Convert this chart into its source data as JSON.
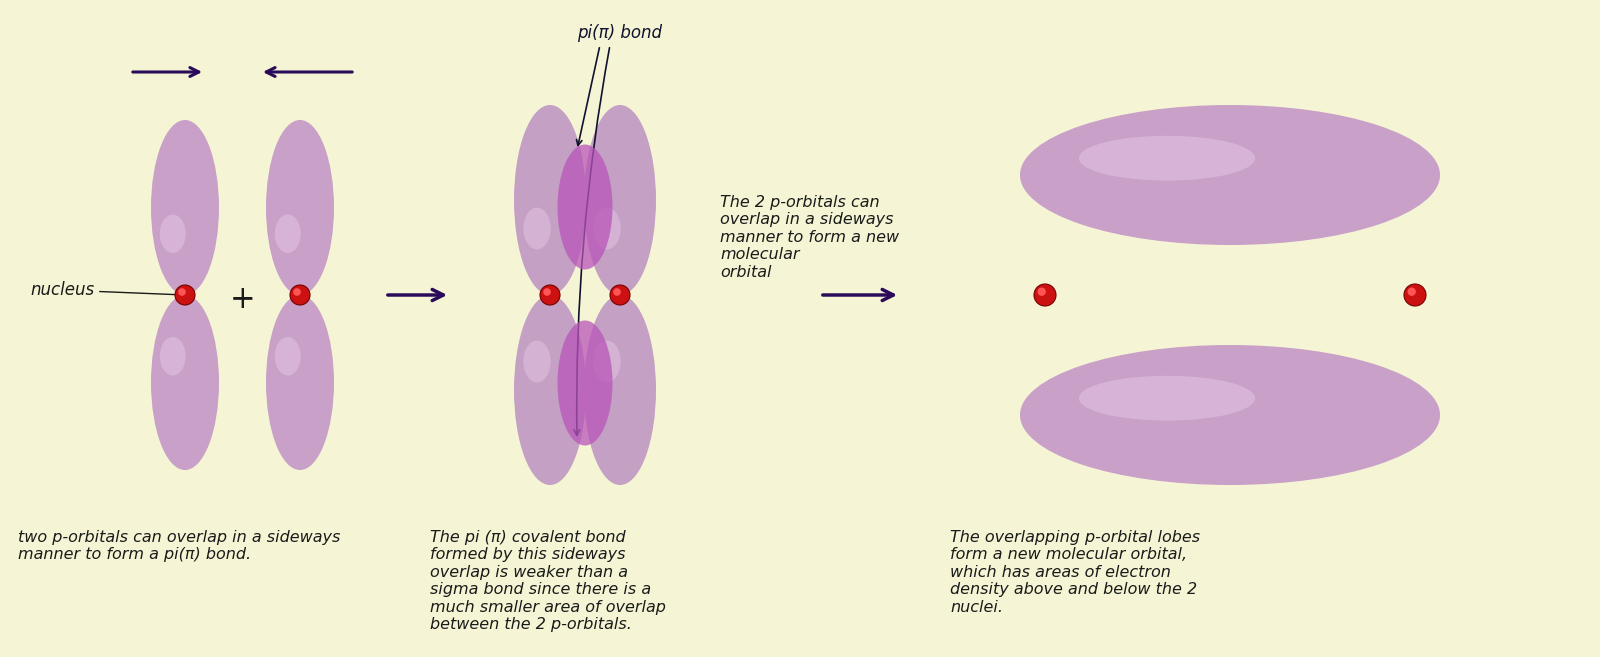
{
  "background_color": "#f5f5d5",
  "orbital_color_main": "#c8a0c8",
  "orbital_color_light": "#e0c0e0",
  "orbital_color_dark": "#a878a8",
  "orbital_color_overlap": "#a050a8",
  "nucleus_color": "#cc1111",
  "nucleus_highlight": "#ff5555",
  "nucleus_edge": "#770000",
  "arrow_color": "#2a0a5a",
  "text_color": "#1a1a1a",
  "annotation_color": "#111130",
  "caption1": "two p-orbitals can overlap in a sideways\nmanner to form a pi(π) bond.",
  "caption2": "The pi (π) covalent bond\nformed by this sideways\noverlap is weaker than a\nsigma bond since there is a\nmuch smaller area of overlap\nbetween the 2 p-orbitals.",
  "caption3": "The overlapping p-orbital lobes\nform a new molecular orbital,\nwhich has areas of electron\ndensity above and below the 2\nnuclei.",
  "label_nucleus": "nucleus",
  "label_pi_bond": "pi(π) bond",
  "label_sideways": "The 2 p-orbitals can\noverlap in a sideways\nmanner to form a new\nmolecular\norbital",
  "font_size_caption": 11.5,
  "font_size_label": 12
}
